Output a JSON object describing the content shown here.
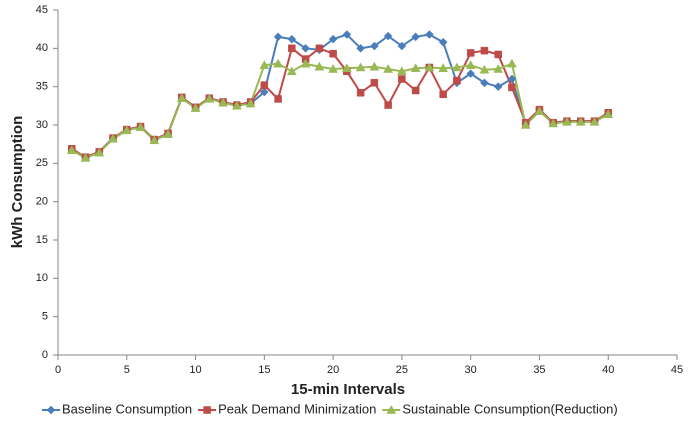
{
  "chart_data": {
    "type": "line",
    "x_label": "15-min Intervals",
    "y_label": "kWh Consumption",
    "x": [
      1,
      2,
      3,
      4,
      5,
      6,
      7,
      8,
      9,
      10,
      11,
      12,
      13,
      14,
      15,
      16,
      17,
      18,
      19,
      20,
      21,
      22,
      23,
      24,
      25,
      26,
      27,
      28,
      29,
      30,
      31,
      32,
      33,
      34,
      35,
      36,
      37,
      38,
      39,
      40
    ],
    "series": [
      {
        "name": "Baseline Consumption",
        "color": "#4a7ebb",
        "marker": "diamond",
        "values": [
          26.8,
          25.8,
          26.5,
          28.3,
          29.4,
          29.8,
          28.1,
          28.9,
          33.6,
          32.3,
          33.5,
          33.0,
          32.6,
          32.8,
          34.3,
          41.5,
          41.2,
          40.0,
          39.8,
          41.2,
          41.8,
          40.0,
          40.3,
          41.6,
          40.3,
          41.5,
          41.8,
          40.8,
          35.5,
          36.7,
          35.5,
          35.0,
          36.0,
          30.2,
          32.0,
          30.3,
          30.5,
          30.5,
          30.5,
          31.5
        ]
      },
      {
        "name": "Peak Demand Minimization",
        "color": "#be4b48",
        "marker": "square",
        "values": [
          26.9,
          25.8,
          26.5,
          28.3,
          29.4,
          29.8,
          28.1,
          28.9,
          33.6,
          32.3,
          33.5,
          33.0,
          32.6,
          33.0,
          35.2,
          33.4,
          40.0,
          38.6,
          40.0,
          39.3,
          37.0,
          34.2,
          35.5,
          32.6,
          36.0,
          34.5,
          37.5,
          34.0,
          35.8,
          39.4,
          39.7,
          39.2,
          34.9,
          30.3,
          32.0,
          30.3,
          30.5,
          30.5,
          30.5,
          31.6
        ]
      },
      {
        "name": "Sustainable Consumption(Reduction)",
        "color": "#98b954",
        "marker": "triangle",
        "values": [
          26.7,
          25.7,
          26.4,
          28.2,
          29.3,
          29.7,
          28.0,
          28.8,
          33.5,
          32.2,
          33.4,
          32.9,
          32.5,
          32.8,
          37.8,
          38.0,
          37.0,
          38.0,
          37.6,
          37.3,
          37.4,
          37.5,
          37.6,
          37.3,
          37.0,
          37.4,
          37.5,
          37.4,
          37.5,
          37.8,
          37.2,
          37.3,
          38.0,
          30.0,
          31.8,
          30.2,
          30.4,
          30.4,
          30.4,
          31.4
        ]
      }
    ],
    "xlim": [
      0,
      45
    ],
    "xticks": [
      0,
      5,
      10,
      15,
      20,
      25,
      30,
      35,
      40,
      45
    ],
    "ylim": [
      0,
      45
    ],
    "yticks": [
      0,
      5,
      10,
      15,
      20,
      25,
      30,
      35,
      40,
      45
    ],
    "grid": false,
    "legend": "bottom"
  }
}
